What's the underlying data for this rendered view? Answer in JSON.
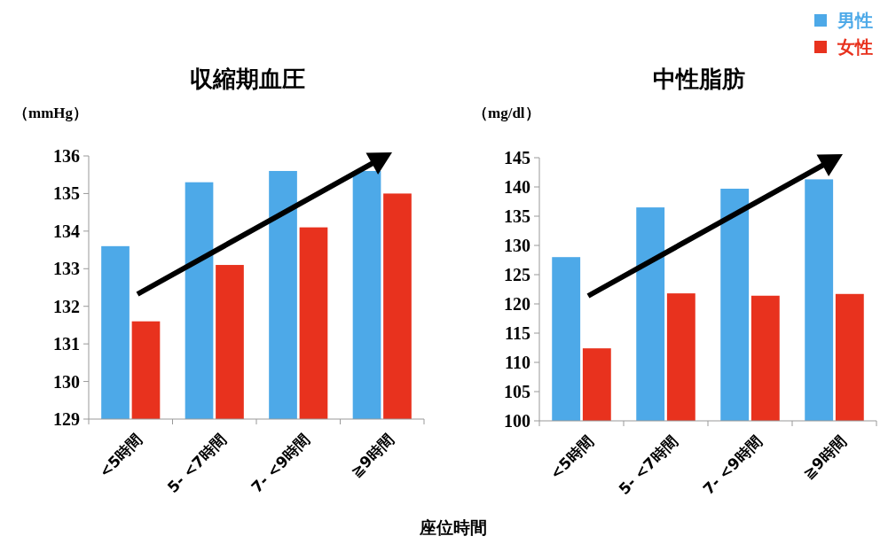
{
  "chart_data": [
    {
      "type": "bar",
      "title": "収縮期血圧",
      "ylabel": "（mmHg）",
      "xlabel": "座位時間",
      "categories": [
        "<5時間",
        "5- <7時間",
        "7- <9時間",
        "≧9時間"
      ],
      "series": [
        {
          "color": "#4da9e8",
          "values": [
            133.6,
            135.3,
            135.6,
            135.6
          ]
        },
        {
          "color": "#e8321e",
          "values": [
            131.6,
            133.1,
            134.1,
            135.0
          ]
        }
      ],
      "ylim": [
        129,
        136
      ],
      "yticks": [
        129,
        130,
        131,
        132,
        133,
        134,
        135,
        136
      ],
      "grid": false,
      "legend": false
    },
    {
      "type": "bar",
      "title": "中性脂肪",
      "ylabel": "（mg/dl）",
      "categories": [
        "<5時間",
        "5- <7時間",
        "7- <9時間",
        "≧9時間"
      ],
      "series": [
        {
          "name": "男性",
          "color": "#4da9e8",
          "values": [
            128.0,
            136.5,
            139.7,
            141.3
          ]
        },
        {
          "name": "女性",
          "color": "#e8321e",
          "values": [
            112.4,
            121.8,
            121.4,
            121.7
          ]
        }
      ],
      "ylim": [
        100,
        145
      ],
      "yticks": [
        100,
        105,
        110,
        115,
        120,
        125,
        130,
        135,
        140,
        145
      ],
      "grid": false,
      "legend": "top right"
    }
  ]
}
